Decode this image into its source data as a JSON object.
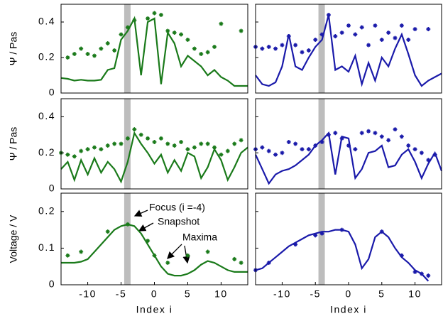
{
  "chart_data": [
    {
      "type": "line",
      "ylabel": "Ψ / Pas",
      "xlim": [
        -14,
        14
      ],
      "ylim": [
        0,
        0.5
      ],
      "yticks": [
        0,
        0.2,
        0.4
      ],
      "highlight": -4,
      "color": "#1a7a1a",
      "x": [
        -14,
        -13,
        -12,
        -11,
        -10,
        -9,
        -8,
        -7,
        -6,
        -5,
        -4,
        -3,
        -2,
        -1,
        0,
        1,
        2,
        3,
        4,
        5,
        6,
        7,
        8,
        9,
        10,
        11,
        12,
        13,
        14
      ],
      "values": [
        0.085,
        0.08,
        0.07,
        0.075,
        0.07,
        0.07,
        0.075,
        0.13,
        0.14,
        0.3,
        0.35,
        0.42,
        0.1,
        0.4,
        0.42,
        0.05,
        0.34,
        0.28,
        0.15,
        0.21,
        0.18,
        0.15,
        0.1,
        0.13,
        0.09,
        0.07,
        0.04,
        0.04,
        0.04
      ],
      "points_x": [
        -13,
        -12,
        -11,
        -10,
        -9,
        -8,
        -7,
        -6,
        -5,
        -4,
        -3,
        -1,
        0,
        1,
        2,
        3,
        4,
        5,
        6,
        7,
        8,
        9,
        10,
        13
      ],
      "points": [
        0.2,
        0.22,
        0.25,
        0.22,
        0.21,
        0.25,
        0.28,
        0.24,
        0.33,
        0.37,
        0.41,
        0.42,
        0.45,
        0.44,
        0.35,
        0.34,
        0.33,
        0.3,
        0.25,
        0.22,
        0.23,
        0.26,
        0.39,
        0.35
      ]
    },
    {
      "type": "line",
      "xlim": [
        -14,
        14
      ],
      "ylim": [
        0,
        0.5
      ],
      "yticks": [
        0,
        0.2,
        0.4
      ],
      "highlight": -4,
      "color": "#1a1aaa",
      "x": [
        -14,
        -13,
        -12,
        -11,
        -10,
        -9,
        -8,
        -7,
        -6,
        -5,
        -4,
        -3,
        -2,
        -1,
        0,
        1,
        2,
        3,
        4,
        5,
        6,
        7,
        8,
        9,
        10,
        11,
        12,
        13,
        14
      ],
      "values": [
        0.1,
        0.05,
        0.04,
        0.06,
        0.15,
        0.33,
        0.15,
        0.13,
        0.2,
        0.26,
        0.3,
        0.44,
        0.13,
        0.15,
        0.12,
        0.21,
        0.05,
        0.17,
        0.07,
        0.2,
        0.15,
        0.25,
        0.33,
        0.22,
        0.1,
        0.04,
        0.07,
        0.09,
        0.11
      ],
      "points_x": [
        -14,
        -13,
        -12,
        -11,
        -10,
        -9,
        -8,
        -7,
        -6,
        -5,
        -4,
        -3,
        -2,
        -1,
        0,
        1,
        2,
        3,
        4,
        5,
        6,
        7,
        8,
        9,
        10,
        12
      ],
      "points": [
        0.26,
        0.25,
        0.26,
        0.25,
        0.27,
        0.32,
        0.27,
        0.23,
        0.24,
        0.3,
        0.33,
        0.44,
        0.32,
        0.34,
        0.38,
        0.33,
        0.37,
        0.27,
        0.38,
        0.3,
        0.34,
        0.31,
        0.38,
        0.3,
        0.36,
        0.36
      ]
    },
    {
      "type": "line",
      "ylabel": "Ψ / Pas",
      "xlim": [
        -14,
        14
      ],
      "ylim": [
        0,
        0.5
      ],
      "yticks": [
        0,
        0.2,
        0.4
      ],
      "highlight": -4,
      "color": "#1a7a1a",
      "x": [
        -14,
        -13,
        -12,
        -11,
        -10,
        -9,
        -8,
        -7,
        -6,
        -5,
        -4,
        -3,
        -2,
        -1,
        0,
        1,
        2,
        3,
        4,
        5,
        6,
        7,
        8,
        9,
        10,
        11,
        12,
        13,
        14
      ],
      "values": [
        0.11,
        0.15,
        0.05,
        0.16,
        0.08,
        0.17,
        0.09,
        0.15,
        0.11,
        0.04,
        0.15,
        0.31,
        0.25,
        0.2,
        0.14,
        0.19,
        0.09,
        0.16,
        0.1,
        0.2,
        0.18,
        0.06,
        0.12,
        0.22,
        0.16,
        0.05,
        0.12,
        0.2,
        0.23
      ],
      "points_x": [
        -14,
        -13,
        -12,
        -11,
        -10,
        -9,
        -8,
        -7,
        -6,
        -5,
        -4,
        -3,
        -2,
        -1,
        0,
        1,
        2,
        3,
        4,
        5,
        6,
        7,
        8,
        9,
        10,
        11,
        12,
        13
      ],
      "points": [
        0.2,
        0.19,
        0.18,
        0.21,
        0.22,
        0.23,
        0.22,
        0.24,
        0.25,
        0.25,
        0.28,
        0.33,
        0.3,
        0.28,
        0.26,
        0.28,
        0.25,
        0.24,
        0.26,
        0.22,
        0.23,
        0.25,
        0.25,
        0.23,
        0.19,
        0.21,
        0.25,
        0.27
      ]
    },
    {
      "type": "line",
      "xlim": [
        -14,
        14
      ],
      "ylim": [
        0,
        0.5
      ],
      "yticks": [
        0,
        0.2,
        0.4
      ],
      "highlight": -4,
      "color": "#1a1aaa",
      "x": [
        -14,
        -13,
        -12,
        -11,
        -10,
        -9,
        -8,
        -7,
        -6,
        -5,
        -4,
        -3,
        -2,
        -1,
        0,
        1,
        2,
        3,
        4,
        5,
        6,
        7,
        8,
        9,
        10,
        11,
        12,
        13,
        14
      ],
      "values": [
        0.19,
        0.11,
        0.03,
        0.08,
        0.1,
        0.11,
        0.13,
        0.16,
        0.19,
        0.24,
        0.27,
        0.31,
        0.08,
        0.29,
        0.28,
        0.06,
        0.11,
        0.2,
        0.21,
        0.24,
        0.12,
        0.13,
        0.19,
        0.22,
        0.15,
        0.06,
        0.14,
        0.2,
        0.1
      ],
      "points_x": [
        -14,
        -13,
        -12,
        -11,
        -10,
        -9,
        -8,
        -7,
        -6,
        -5,
        -4,
        -3,
        -2,
        -1,
        0,
        1,
        2,
        3,
        4,
        5,
        6,
        7,
        8,
        9,
        10,
        11,
        12,
        13
      ],
      "points": [
        0.22,
        0.23,
        0.21,
        0.19,
        0.2,
        0.26,
        0.25,
        0.22,
        0.22,
        0.24,
        0.26,
        0.3,
        0.31,
        0.28,
        0.24,
        0.22,
        0.31,
        0.32,
        0.31,
        0.29,
        0.27,
        0.33,
        0.29,
        0.24,
        0.22,
        0.2,
        0.16,
        0.19
      ]
    },
    {
      "type": "line",
      "ylabel": "Voltage / V",
      "xlabel": "Index i",
      "xlim": [
        -14,
        14
      ],
      "ylim": [
        0,
        0.25
      ],
      "yticks": [
        0,
        0.1,
        0.2
      ],
      "xticks": [
        -10,
        -5,
        0,
        5,
        10
      ],
      "highlight": -4,
      "color": "#1a7a1a",
      "annotations": [
        "Focus (i =-4)",
        "Snapshot",
        "Maxima"
      ],
      "x": [
        -14,
        -13,
        -12,
        -11,
        -10,
        -9,
        -8,
        -7,
        -6,
        -5,
        -4,
        -3,
        -2,
        -1,
        0,
        1,
        2,
        3,
        4,
        5,
        6,
        7,
        8,
        9,
        10,
        11,
        12,
        13,
        14
      ],
      "values": [
        0.06,
        0.06,
        0.06,
        0.063,
        0.07,
        0.09,
        0.11,
        0.13,
        0.15,
        0.16,
        0.165,
        0.16,
        0.14,
        0.11,
        0.08,
        0.05,
        0.03,
        0.025,
        0.025,
        0.03,
        0.04,
        0.055,
        0.065,
        0.06,
        0.05,
        0.04,
        0.035,
        0.035,
        0.035
      ],
      "points_x": [
        -13,
        -11,
        -7,
        -4,
        -1,
        0,
        2,
        5,
        8,
        12,
        13
      ],
      "points": [
        0.08,
        0.09,
        0.145,
        0.165,
        0.12,
        0.08,
        0.06,
        0.08,
        0.09,
        0.07,
        0.06
      ]
    },
    {
      "type": "line",
      "xlabel": "Index i",
      "xlim": [
        -14,
        14
      ],
      "ylim": [
        0,
        0.25
      ],
      "yticks": [
        0,
        0.1,
        0.2
      ],
      "xticks": [
        -10,
        -5,
        0,
        5,
        10
      ],
      "highlight": -4,
      "color": "#1a1aaa",
      "x": [
        -14,
        -13,
        -12,
        -11,
        -10,
        -9,
        -8,
        -7,
        -6,
        -5,
        -4,
        -3,
        -2,
        -1,
        0,
        1,
        2,
        3,
        4,
        5,
        6,
        7,
        8,
        9,
        10,
        11,
        12
      ],
      "values": [
        0.04,
        0.045,
        0.06,
        0.075,
        0.09,
        0.105,
        0.115,
        0.125,
        0.135,
        0.14,
        0.145,
        0.145,
        0.15,
        0.15,
        0.145,
        0.11,
        0.045,
        0.07,
        0.13,
        0.145,
        0.13,
        0.1,
        0.075,
        0.06,
        0.04,
        0.03,
        0.01
      ],
      "points_x": [
        -14,
        -12,
        -8,
        -5,
        -4,
        -1,
        5,
        8,
        10,
        11,
        12
      ],
      "points": [
        0.04,
        0.06,
        0.11,
        0.135,
        0.14,
        0.15,
        0.145,
        0.08,
        0.035,
        0.03,
        0.025
      ]
    }
  ]
}
